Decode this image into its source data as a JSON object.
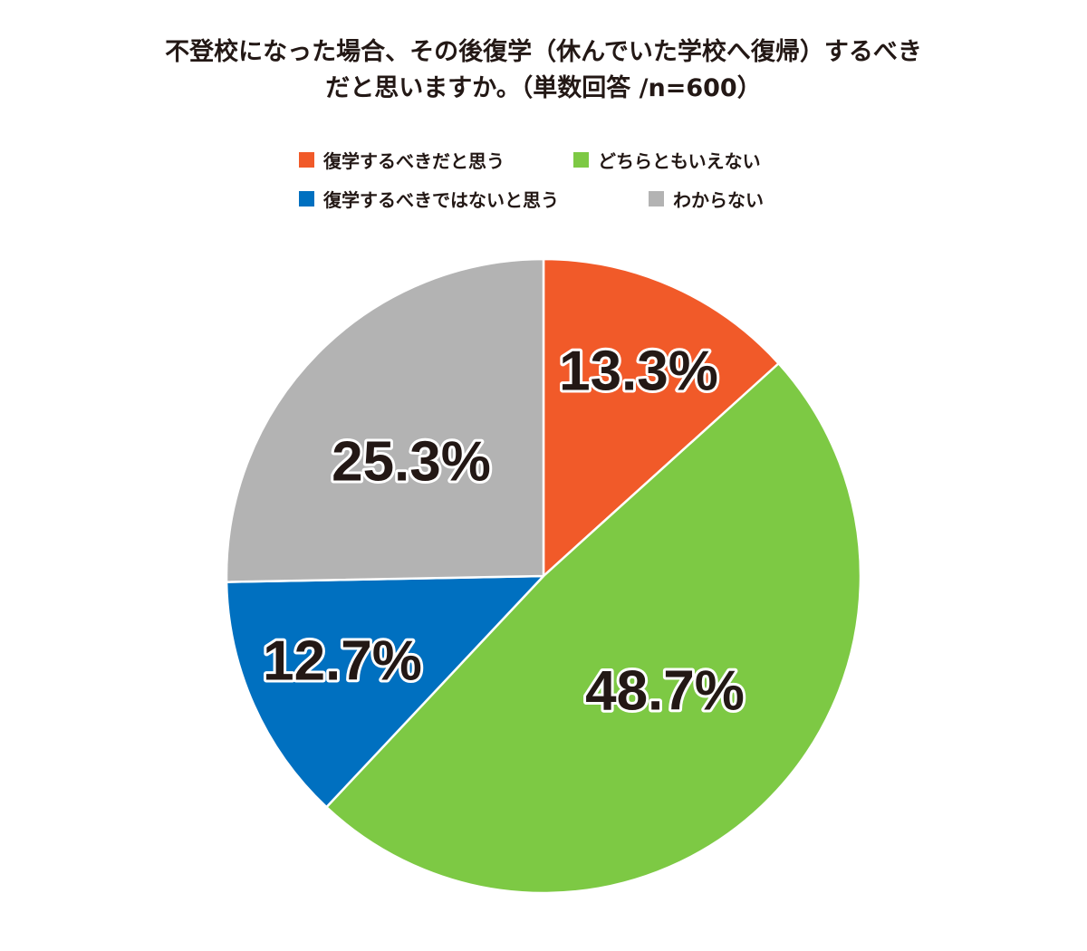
{
  "chart_data": {
    "type": "pie",
    "title_lines": [
      "不登校になった場合、その後復学（休んでいた学校へ復帰）するべき",
      "だと思いますか。（単数回答 /n=600）"
    ],
    "slices": [
      {
        "name": "復学するべきだと思う",
        "value": 13.3,
        "label": "13.3%",
        "color": "#F15A29"
      },
      {
        "name": "どちらともいえない",
        "value": 48.7,
        "label": "48.7%",
        "color": "#7DC944"
      },
      {
        "name": "復学するべきではないと思う",
        "value": 12.7,
        "label": "12.7%",
        "color": "#0070C0"
      },
      {
        "name": "わからない",
        "value": 25.3,
        "label": "25.3%",
        "color": "#B3B3B3"
      }
    ],
    "start": "12 o'clock",
    "direction": "clockwise",
    "legend_position": "top"
  }
}
